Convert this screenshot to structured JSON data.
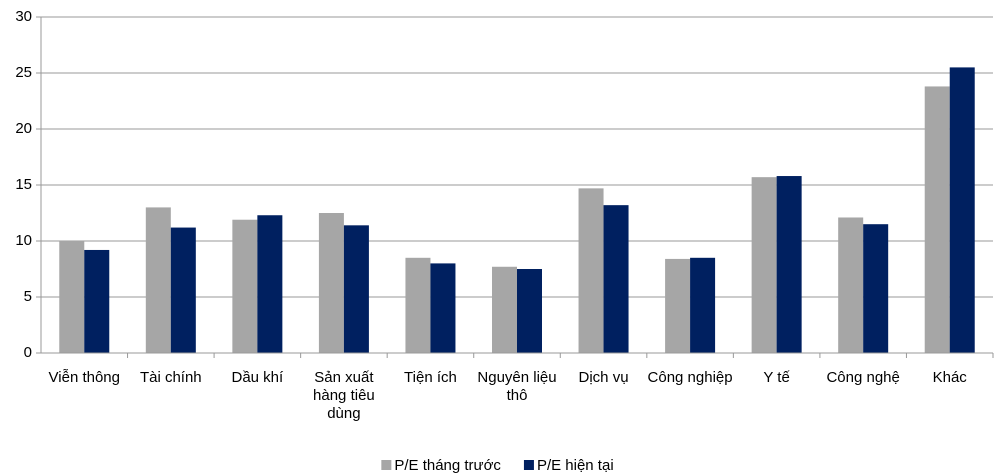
{
  "chart_data": {
    "type": "bar",
    "categories": [
      "Viễn thông",
      "Tài chính",
      "Dầu khí",
      "Sản xuất hàng tiêu dùng",
      "Tiện ích",
      "Nguyên liệu thô",
      "Dịch vụ",
      "Công nghiệp",
      "Y tế",
      "Công nghệ",
      "Khác"
    ],
    "series": [
      {
        "name": "P/E tháng trước",
        "color": "#a6a6a6",
        "values": [
          10.0,
          13.0,
          11.9,
          12.5,
          8.5,
          7.7,
          14.7,
          8.4,
          15.7,
          12.1,
          23.8
        ]
      },
      {
        "name": "P/E hiện tại",
        "color": "#002060",
        "values": [
          9.2,
          11.2,
          12.3,
          11.4,
          8.0,
          7.5,
          13.2,
          8.5,
          15.8,
          11.5,
          25.5
        ]
      }
    ],
    "ylim": [
      0,
      30
    ],
    "yticks": [
      0,
      5,
      10,
      15,
      20,
      25,
      30
    ],
    "grid": true,
    "legend": "bottom"
  }
}
